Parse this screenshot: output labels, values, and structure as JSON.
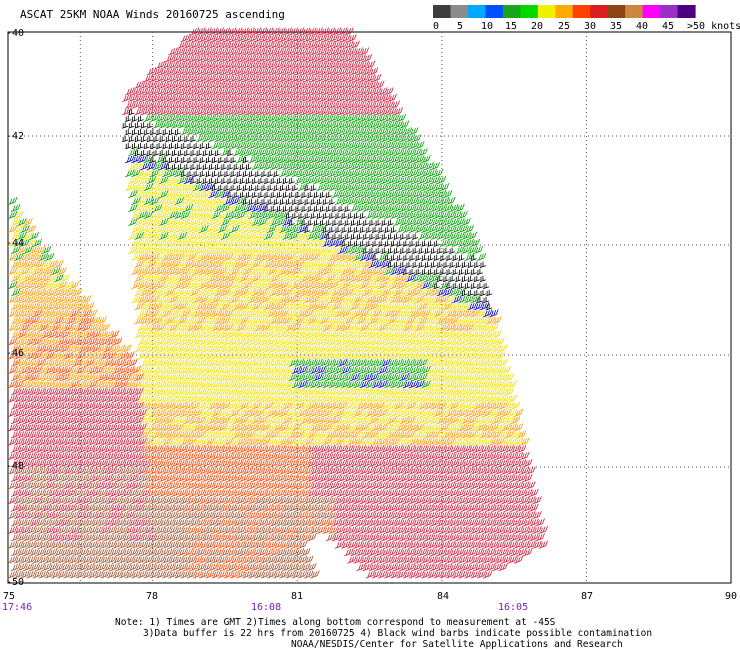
{
  "title": "ASCAT 25KM NOAA Winds 20160725 ascending",
  "colorbar": {
    "labels": [
      "0",
      "5",
      "10",
      "15",
      "20",
      "25",
      "30",
      "35",
      "40",
      "45",
      ">50 knots"
    ],
    "colors": [
      "#3c3c3c",
      "#8c8c8c",
      "#00a8ff",
      "#0050ff",
      "#1ba51b",
      "#00d800",
      "#f0f000",
      "#ffaa00",
      "#ff4000",
      "#dc1e1e",
      "#8b4513",
      "#cd853f",
      "#ff00ff",
      "#9a30c8",
      "#4b0082"
    ]
  },
  "chart_data": {
    "type": "wind-barb map",
    "xlabel": "",
    "ylabel": "",
    "xlim": [
      75,
      90
    ],
    "ylim": [
      -50,
      -40
    ],
    "x_ticks": [
      "75",
      "78",
      "81",
      "84",
      "87",
      "90"
    ],
    "y_ticks": [
      "-40",
      "-42",
      "-44",
      "-46",
      "-48",
      "-50"
    ],
    "swath_times": [
      "17:46",
      "16:08",
      "16:05"
    ],
    "grid": true,
    "barb_colors": {
      "contaminated": "#000000",
      "10-15": "#0000cc",
      "15-20": "#00a000",
      "20-25": "#f0e000",
      "25-30": "#ff9900",
      "30-35": "#ff4400",
      "35-40": "#d01a3a",
      "40-45": "#a0522d"
    }
  },
  "notes": {
    "line1": "Note: 1) Times are GMT 2)Times along bottom correspond to measurement at -45S",
    "line2": "3)Data buffer is 22 hrs from 20160725 4) Black wind barbs indicate possible contamination",
    "line3": "NOAA/NESDIS/Center for Satellite Applications and Research"
  }
}
